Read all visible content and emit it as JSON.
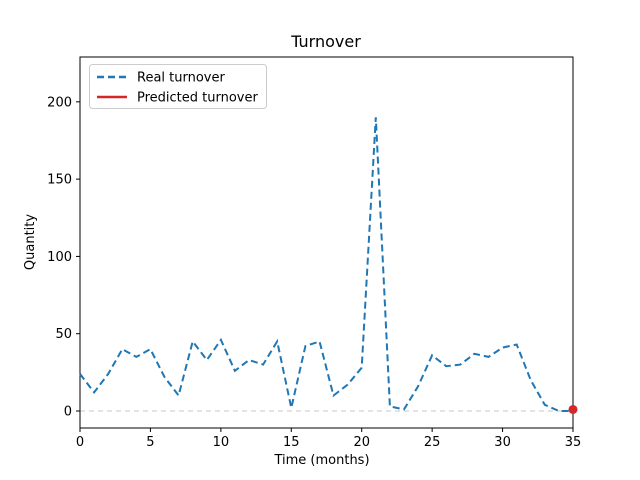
{
  "figure": {
    "title": "Turnover",
    "xlabel": "Time (months)",
    "ylabel": "Quantity"
  },
  "legend": {
    "items": [
      {
        "label": "Real turnover",
        "color": "#1f77b4",
        "linestyle": "dashed"
      },
      {
        "label": "Predicted turnover",
        "color": "#d62728",
        "linestyle": "solid"
      }
    ]
  },
  "chart_data": {
    "type": "line",
    "title": "Turnover",
    "xlabel": "Time (months)",
    "ylabel": "Quantity",
    "xlim": [
      0,
      35
    ],
    "ylim": [
      -11,
      229
    ],
    "xticks": [
      0,
      5,
      10,
      15,
      20,
      25,
      30,
      35
    ],
    "yticks": [
      0,
      50,
      100,
      150,
      200
    ],
    "grid": false,
    "legend_position": "upper-left",
    "zero_line": {
      "y": 0,
      "color": "#c7c7c7",
      "style": "dashed"
    },
    "series": [
      {
        "name": "Real turnover",
        "type": "line",
        "color": "#1f77b4",
        "linestyle": "dashed",
        "linewidth": 2,
        "x": [
          0,
          1,
          2,
          3,
          4,
          5,
          6,
          7,
          8,
          9,
          10,
          11,
          12,
          13,
          14,
          15,
          16,
          17,
          18,
          19,
          20,
          21,
          22,
          23,
          24,
          25,
          26,
          27,
          28,
          29,
          30,
          31,
          32,
          33,
          34,
          35
        ],
        "values": [
          24,
          12,
          24,
          40,
          35,
          40,
          22,
          10,
          45,
          33,
          46,
          26,
          33,
          30,
          45,
          2,
          42,
          45,
          10,
          17,
          28,
          190,
          3,
          1,
          16,
          36,
          29,
          30,
          37,
          35,
          41,
          43,
          20,
          4,
          0,
          0
        ]
      },
      {
        "name": "Predicted turnover",
        "type": "point",
        "color": "#d62728",
        "marker": "circle",
        "marker_size": 9,
        "x": [
          35
        ],
        "values": [
          1
        ]
      }
    ]
  }
}
